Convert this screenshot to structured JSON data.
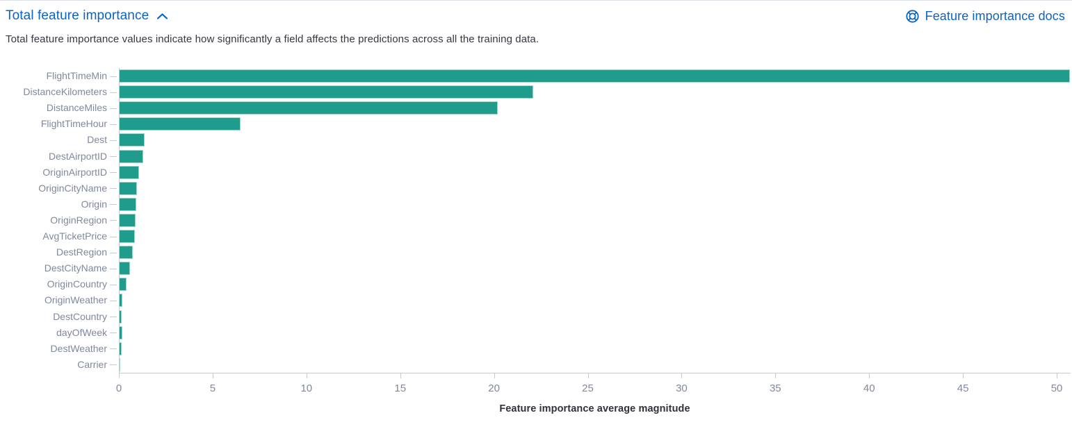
{
  "colors": {
    "link": "#0b63c5",
    "bar": "#1f9c8c",
    "bar_stroke": "#9ed8cd",
    "axis": "#c6cad5",
    "axis_label": "#7f889e",
    "text": "#343741"
  },
  "header": {
    "title": "Total feature importance",
    "collapse_icon": "chevron-up-icon",
    "docs_link_label": "Feature importance docs",
    "docs_link_icon": "help-ring-icon"
  },
  "description": "Total feature importance values indicate how significantly a field affects the predictions across all the training data.",
  "chart_data": {
    "type": "bar",
    "orientation": "horizontal",
    "categories": [
      "FlightTimeMin",
      "DistanceKilometers",
      "DistanceMiles",
      "FlightTimeHour",
      "Dest",
      "DestAirportID",
      "OriginAirportID",
      "OriginCityName",
      "Origin",
      "OriginRegion",
      "AvgTicketPrice",
      "DestRegion",
      "DestCityName",
      "OriginCountry",
      "OriginWeather",
      "DestCountry",
      "dayOfWeek",
      "DestWeather",
      "Carrier"
    ],
    "values": [
      50.7,
      22.1,
      20.2,
      6.5,
      1.37,
      1.3,
      1.07,
      0.96,
      0.93,
      0.88,
      0.85,
      0.73,
      0.6,
      0.41,
      0.19,
      0.16,
      0.17,
      0.14,
      0.06
    ],
    "title": "",
    "xlabel": "Feature importance average magnitude",
    "ylabel": "",
    "xlim": [
      0,
      50.74
    ],
    "xticks": [
      0,
      5,
      10,
      15,
      20,
      25,
      30,
      35,
      40,
      45,
      50
    ],
    "grid": false,
    "legend": false
  }
}
